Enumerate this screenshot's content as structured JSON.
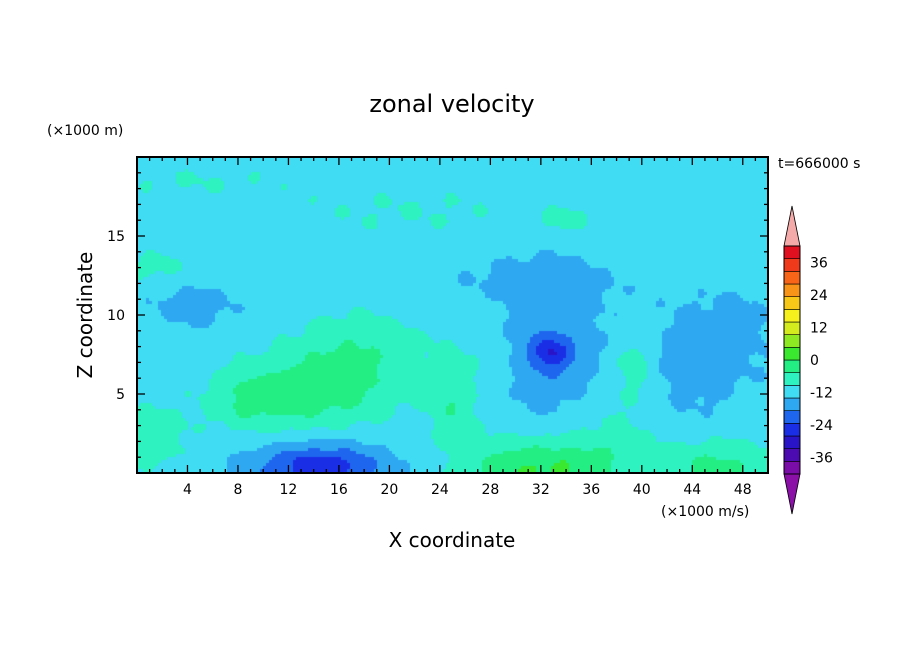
{
  "chart_data": {
    "type": "heatmap",
    "title": "zonal velocity",
    "xlabel": "X coordinate",
    "ylabel": "Z coordinate",
    "x_unit": "(×1000 m/s)",
    "y_unit": "(×1000 m)",
    "time_label": "t=666000 s",
    "xlim": [
      0,
      50
    ],
    "ylim": [
      0,
      20
    ],
    "x_ticks": [
      4,
      8,
      12,
      16,
      20,
      24,
      28,
      32,
      36,
      40,
      44,
      48
    ],
    "y_ticks": [
      5,
      10,
      15
    ],
    "colorbar": {
      "range": [
        -42,
        42
      ],
      "step": 6,
      "labels": [
        36,
        24,
        12,
        0,
        -12,
        -24,
        -36
      ],
      "colors": [
        "#7a0da8",
        "#4b0bb0",
        "#2a14c8",
        "#1a2ee6",
        "#1f66ee",
        "#2fa8f2",
        "#3fdcf4",
        "#2ef2c0",
        "#22ee84",
        "#3ae830",
        "#8ee822",
        "#d4ec1e",
        "#f6f01c",
        "#f8c818",
        "#f89418",
        "#f86418",
        "#f03a1c",
        "#e01020"
      ],
      "under_color": "#8a10a8",
      "over_color": "#f4aaa8"
    },
    "background_value": -3,
    "features": [
      {
        "x": 32.5,
        "z": 7.5,
        "sx": 3.2,
        "sz": 3.0,
        "u": -10
      },
      {
        "x": 32.8,
        "z": 7.6,
        "sx": 1.0,
        "sz": 0.7,
        "u": -13
      },
      {
        "x": 14.5,
        "z": 0.4,
        "sx": 4.2,
        "sz": 1.2,
        "u": -15
      },
      {
        "x": 14.5,
        "z": 0.5,
        "sx": 2.0,
        "sz": 0.5,
        "u": -6
      },
      {
        "x": 11.5,
        "z": 4.8,
        "sx": 4.0,
        "sz": 1.6,
        "u": 10
      },
      {
        "x": 17.0,
        "z": 6.8,
        "sx": 3.5,
        "sz": 2.2,
        "u": 10
      },
      {
        "x": 8.5,
        "z": 4.6,
        "sx": 1.6,
        "sz": 1.2,
        "u": 4
      },
      {
        "x": 32.0,
        "z": 0.2,
        "sx": 4.5,
        "sz": 1.4,
        "u": 16
      },
      {
        "x": 46.0,
        "z": 0.3,
        "sx": 3.5,
        "sz": 1.2,
        "u": 11
      },
      {
        "x": 1.0,
        "z": 2.2,
        "sx": 2.0,
        "sz": 1.3,
        "u": 8
      },
      {
        "x": 25.0,
        "z": 4.2,
        "sx": 1.2,
        "sz": 1.6,
        "u": 7
      },
      {
        "x": 39.5,
        "z": 7.0,
        "sx": 1.2,
        "sz": 1.4,
        "u": 7
      },
      {
        "x": 27.5,
        "z": 7.0,
        "sx": 3.5,
        "sz": 2.5,
        "u": 4
      },
      {
        "x": 37.5,
        "z": 3.2,
        "sx": 2.5,
        "sz": 2.5,
        "u": 4
      },
      {
        "x": 22.0,
        "z": 16.5,
        "sx": 9.0,
        "sz": 1.5,
        "u": 3
      },
      {
        "x": 45.0,
        "z": 13.5,
        "sx": 5.0,
        "sz": 1.2,
        "u": 3
      },
      {
        "x": 4.0,
        "z": 18.5,
        "sx": 6.0,
        "sz": 0.8,
        "u": 3
      },
      {
        "x": 1.5,
        "z": 13.0,
        "sx": 1.8,
        "sz": 0.8,
        "u": 5
      },
      {
        "x": 34.0,
        "z": 16.0,
        "sx": 1.2,
        "sz": 0.5,
        "u": 6
      },
      {
        "x": 43.5,
        "z": 7.0,
        "sx": 2.5,
        "sz": 2.5,
        "u": -6
      },
      {
        "x": 4.5,
        "z": 10.5,
        "sx": 3.0,
        "sz": 1.2,
        "u": -5
      },
      {
        "x": 32.0,
        "z": 12.5,
        "sx": 7.0,
        "sz": 1.3,
        "u": -4
      },
      {
        "x": 48.0,
        "z": 9.0,
        "sx": 2.5,
        "sz": 3.0,
        "u": -4
      }
    ]
  }
}
